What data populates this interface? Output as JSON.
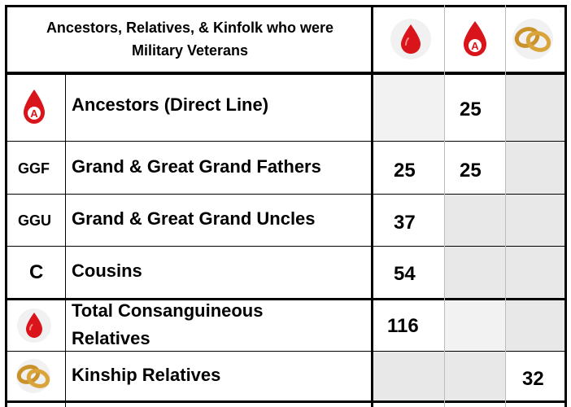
{
  "header": {
    "title_line1": "Ancestors, Relatives, & Kinfolk who were",
    "title_line2": "Military Veterans",
    "col_icons": [
      "blood-drop-icon",
      "blood-drop-a-icon",
      "wedding-rings-icon"
    ]
  },
  "rows": [
    {
      "code": "",
      "code_icon": "blood-drop-a-icon",
      "label": "Ancestors (Direct Line)",
      "c1": "",
      "c2": "25",
      "c3": ""
    },
    {
      "code": "GGF",
      "label": "Grand & Great Grand Fathers",
      "c1": "25",
      "c2": "25",
      "c3": ""
    },
    {
      "code": "GGU",
      "label": "Grand & Great Grand Uncles",
      "c1": "37",
      "c2": "",
      "c3": ""
    },
    {
      "code": "C",
      "label": "Cousins",
      "c1": "54",
      "c2": "",
      "c3": ""
    },
    {
      "code": "",
      "code_icon": "blood-drop-icon",
      "label_line1": "Total Consanguineous",
      "label_line2": "Relatives",
      "c1": "116",
      "c2": "",
      "c3": ""
    },
    {
      "code": "",
      "code_icon": "wedding-rings-icon",
      "label": "Kinship Relatives",
      "c1": "",
      "c2": "",
      "c3": "32"
    }
  ],
  "colors": {
    "blood": "#d9151b",
    "gold": "#c9922a",
    "shade": "#e8e8e8",
    "border": "#000000"
  }
}
